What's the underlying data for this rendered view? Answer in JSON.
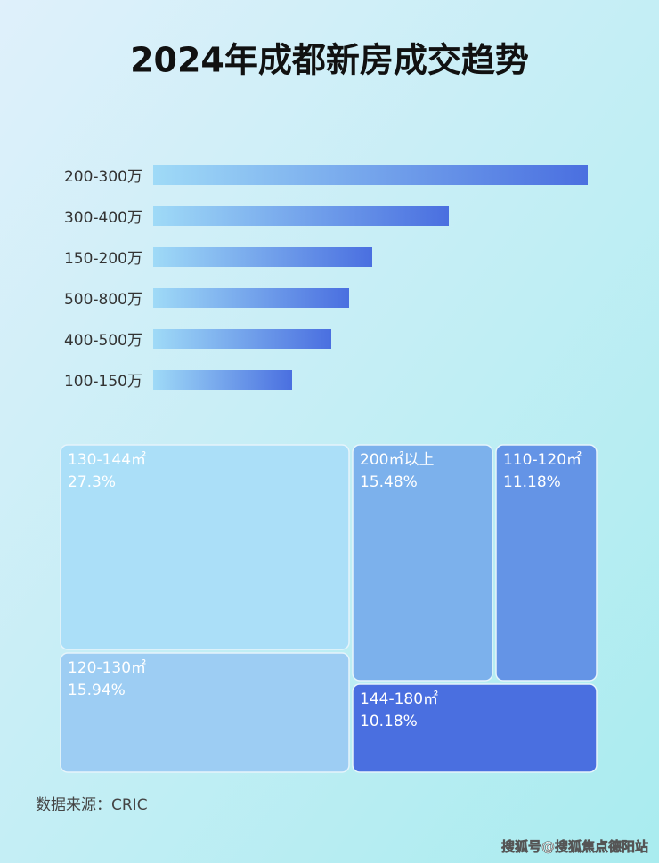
{
  "chart_data": [
    {
      "type": "bar",
      "title": "2024年成都新房成交趋势",
      "categories": [
        "200-300万",
        "300-400万",
        "150-200万",
        "500-800万",
        "400-500万",
        "100-150万"
      ],
      "values": [
        488,
        332,
        246,
        220,
        200,
        156
      ],
      "color": "#4a6fe0"
    },
    {
      "type": "treemap",
      "labels": [
        "130-144㎡",
        "120-130㎡",
        "200㎡以上",
        "110-120㎡",
        "144-180㎡"
      ],
      "values": [
        27.3,
        15.94,
        15.48,
        11.18,
        10.18
      ],
      "value_labels": [
        "27.3%",
        "15.94%",
        "15.48%",
        "11.18%",
        "10.18%"
      ],
      "colors": [
        "#abdff8",
        "#9dcdf3",
        "#7cb1ec",
        "#6494e6",
        "#4a6fe0"
      ]
    }
  ],
  "source": "数据来源：CRIC",
  "watermark": "搜狐号@搜狐焦点德阳站"
}
